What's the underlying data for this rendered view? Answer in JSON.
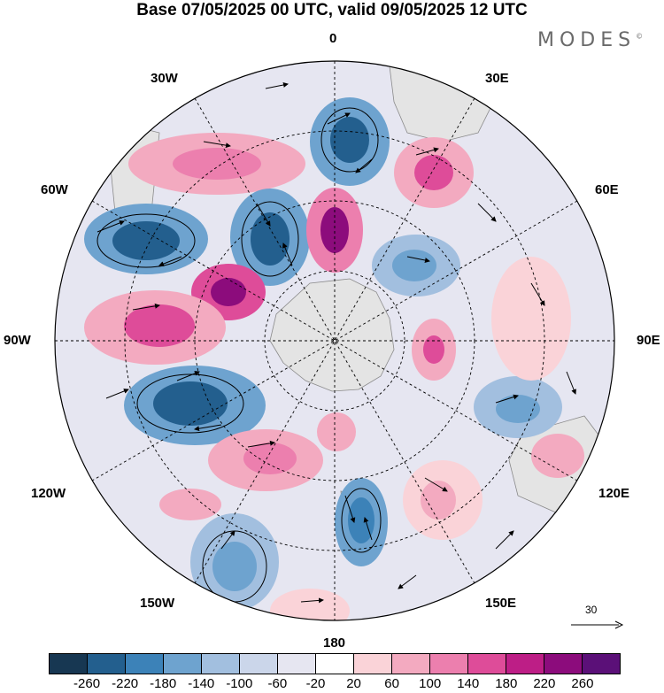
{
  "title": "Base 07/05/2025 00 UTC, valid 09/05/2025 12 UTC",
  "brand": "MODES",
  "brand_mark": "©",
  "longitude_labels": {
    "n0": "0",
    "n30e": "30E",
    "n60e": "60E",
    "n90e": "90E",
    "n120e": "120E",
    "n150e": "150E",
    "n180": "180",
    "n150w": "150W",
    "n120w": "120W",
    "n90w": "90W",
    "n60w": "60W",
    "n30w": "30W"
  },
  "reference_vector": {
    "label": "30"
  },
  "colorbar": {
    "ticks": [
      "-260",
      "-220",
      "-180",
      "-140",
      "-100",
      "-60",
      "-20",
      "20",
      "60",
      "100",
      "140",
      "180",
      "220",
      "260"
    ],
    "colors": [
      "#173752",
      "#235f8e",
      "#3c82b8",
      "#6ea3cf",
      "#a2bfdf",
      "#cbd6ea",
      "#e6e6f1",
      "#ffffff",
      "#fad3d8",
      "#f3aac0",
      "#ec7fae",
      "#de4c99",
      "#bd1e86",
      "#8c0c7c",
      "#5b1078"
    ]
  },
  "colors": {
    "continent": "#e4e4e4",
    "coast": "#8a8a8a"
  }
}
